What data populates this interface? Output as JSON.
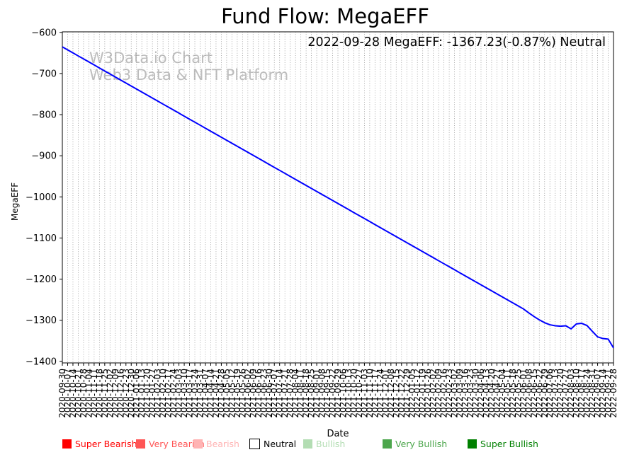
{
  "title": "Fund Flow: MegaEFF",
  "annotation": "2022-09-28 MegaEFF: -1367.23(-0.87%) Neutral",
  "watermark": {
    "line1": "W3Data.io Chart",
    "line2": "Web3 Data & NFT Platform"
  },
  "colors": {
    "line": "#0000ff",
    "grid": "#9a9a9a",
    "axis": "#000000",
    "watermark_text": "#bdbdbd"
  },
  "chart_data": {
    "type": "line",
    "title": "Fund Flow: MegaEFF",
    "xlabel": "Date",
    "ylabel": "MegaEFF",
    "ylim": [
      -1403.8,
      -598.6
    ],
    "yticks": [
      -600,
      -700,
      -800,
      -900,
      -1000,
      -1100,
      -1200,
      -1300,
      -1400
    ],
    "grid": "vertical-dotted",
    "legend_position": "bottom",
    "x": [
      "2020-09-30",
      "2020-10-07",
      "2020-10-14",
      "2020-10-21",
      "2020-10-28",
      "2020-11-04",
      "2020-11-11",
      "2020-11-18",
      "2020-11-25",
      "2020-12-02",
      "2020-12-09",
      "2020-12-16",
      "2020-12-23",
      "2020-12-30",
      "2021-01-06",
      "2021-01-13",
      "2021-01-20",
      "2021-01-27",
      "2021-02-03",
      "2021-02-10",
      "2021-02-17",
      "2021-02-24",
      "2021-03-03",
      "2021-03-10",
      "2021-03-17",
      "2021-03-24",
      "2021-03-31",
      "2021-04-07",
      "2021-04-14",
      "2021-04-21",
      "2021-04-28",
      "2021-05-05",
      "2021-05-12",
      "2021-05-19",
      "2021-05-26",
      "2021-06-02",
      "2021-06-09",
      "2021-06-16",
      "2021-06-23",
      "2021-06-30",
      "2021-07-07",
      "2021-07-14",
      "2021-07-21",
      "2021-07-28",
      "2021-08-04",
      "2021-08-11",
      "2021-08-18",
      "2021-08-25",
      "2021-09-01",
      "2021-09-08",
      "2021-09-15",
      "2021-09-22",
      "2021-09-29",
      "2021-10-06",
      "2021-10-13",
      "2021-10-20",
      "2021-10-27",
      "2021-11-03",
      "2021-11-10",
      "2021-11-17",
      "2021-11-24",
      "2021-12-01",
      "2021-12-08",
      "2021-12-15",
      "2021-12-22",
      "2021-12-29",
      "2022-01-05",
      "2022-01-12",
      "2022-01-19",
      "2022-01-26",
      "2022-02-02",
      "2022-02-09",
      "2022-02-16",
      "2022-02-23",
      "2022-03-02",
      "2022-03-09",
      "2022-03-16",
      "2022-03-23",
      "2022-03-30",
      "2022-04-06",
      "2022-04-13",
      "2022-04-20",
      "2022-04-27",
      "2022-05-04",
      "2022-05-11",
      "2022-05-18",
      "2022-05-25",
      "2022-06-01",
      "2022-06-08",
      "2022-06-15",
      "2022-06-22",
      "2022-06-29",
      "2022-07-06",
      "2022-07-13",
      "2022-07-20",
      "2022-07-27",
      "2022-08-03",
      "2022-08-10",
      "2022-08-17",
      "2022-08-24",
      "2022-08-31",
      "2022-09-07",
      "2022-09-14",
      "2022-09-21",
      "2022-09-28"
    ],
    "series": [
      {
        "name": "MegaEFF",
        "color": "#0000ff",
        "values": [
          -635.2,
          -642.5,
          -649.8,
          -657.2,
          -664.5,
          -671.8,
          -679.1,
          -686.5,
          -693.8,
          -701.1,
          -708.4,
          -715.8,
          -723.1,
          -730.4,
          -737.7,
          -745.1,
          -752.4,
          -759.7,
          -767.0,
          -774.4,
          -781.7,
          -789.0,
          -796.3,
          -803.7,
          -811.0,
          -818.3,
          -825.6,
          -833.0,
          -840.3,
          -847.6,
          -854.9,
          -862.3,
          -869.6,
          -876.9,
          -884.2,
          -891.6,
          -898.9,
          -906.2,
          -913.5,
          -920.9,
          -928.2,
          -935.5,
          -942.8,
          -950.2,
          -957.5,
          -964.8,
          -972.1,
          -979.5,
          -986.8,
          -994.1,
          -1001.4,
          -1008.8,
          -1016.1,
          -1023.4,
          -1030.7,
          -1038.1,
          -1045.4,
          -1052.7,
          -1060.0,
          -1067.4,
          -1074.7,
          -1082.0,
          -1089.3,
          -1096.7,
          -1104.0,
          -1111.3,
          -1118.6,
          -1126.0,
          -1133.3,
          -1140.6,
          -1147.9,
          -1155.3,
          -1162.6,
          -1169.9,
          -1177.2,
          -1184.6,
          -1191.9,
          -1199.2,
          -1206.5,
          -1213.9,
          -1221.2,
          -1228.5,
          -1235.8,
          -1243.2,
          -1250.5,
          -1257.8,
          -1265.1,
          -1272.5,
          -1282.0,
          -1291.0,
          -1299.0,
          -1306.0,
          -1311.0,
          -1313.5,
          -1314.5,
          -1313.5,
          -1321.0,
          -1309.0,
          -1307.5,
          -1313.0,
          -1327.0,
          -1340.5,
          -1344.5,
          -1346.0,
          -1367.23
        ]
      }
    ],
    "legend": [
      {
        "label": "Super Bearish",
        "color": "#ff0000",
        "text_color": "#ff0000"
      },
      {
        "label": "Very Bearish",
        "color": "#ff5555",
        "text_color": "#ff5555"
      },
      {
        "label": "Bearish",
        "color": "#ffb3b3",
        "text_color": "#ffb3b3"
      },
      {
        "label": "Neutral",
        "color": "#ffffff",
        "text_color": "#000000",
        "border": "#000000"
      },
      {
        "label": "Bullish",
        "color": "#b3ddb3",
        "text_color": "#b3ddb3"
      },
      {
        "label": "Very Bullish",
        "color": "#4ca64c",
        "text_color": "#4ca64c"
      },
      {
        "label": "Super Bullish",
        "color": "#008000",
        "text_color": "#008000"
      }
    ]
  }
}
